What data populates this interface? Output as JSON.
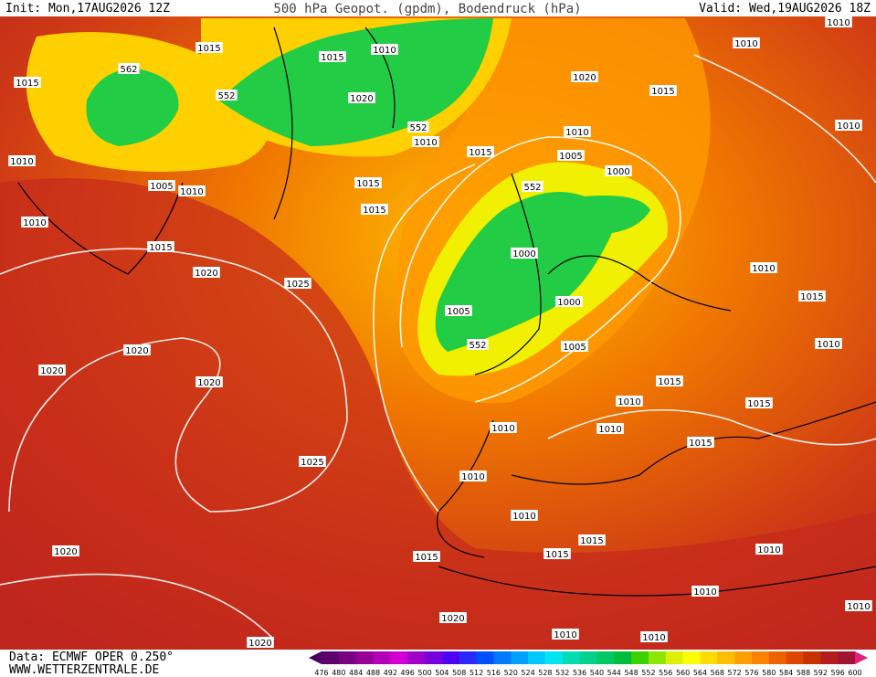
{
  "header": {
    "init": "Init: Mon,17AUG2026 12Z",
    "title": "500 hPa Geopot. (gpdm), Bodendruck (hPa)",
    "valid": "Valid: Wed,19AUG2026 18Z"
  },
  "footer": {
    "data": "Data: ECMWF OPER 0.250°",
    "url": "WWW.WETTERZENTRALE.DE"
  },
  "isobar_labels": [
    "1015",
    "1010",
    "1015",
    "1010",
    "1010",
    "1015",
    "562",
    "552",
    "1020",
    "1020",
    "1015",
    "552",
    "1010",
    "1010",
    "1010",
    "1015",
    "1005",
    "1000",
    "1010",
    "1005",
    "1010",
    "1015",
    "552",
    "1015",
    "1010",
    "1015",
    "1000",
    "1020",
    "1025",
    "1010",
    "1015",
    "1000",
    "1005",
    "552",
    "1005",
    "1010",
    "1020",
    "1020",
    "1020",
    "1015",
    "1010",
    "1015",
    "1010",
    "1010",
    "1015",
    "1025",
    "1010",
    "1010",
    "1015",
    "1015",
    "1015",
    "1020",
    "1010",
    "1010",
    "1020",
    "1010",
    "1010",
    "1020",
    "1010"
  ],
  "colorbar": {
    "labels": [
      476,
      480,
      484,
      488,
      492,
      496,
      500,
      504,
      508,
      512,
      516,
      520,
      524,
      528,
      532,
      536,
      540,
      544,
      548,
      552,
      556,
      560,
      564,
      568,
      572,
      576,
      580,
      584,
      588,
      592,
      596,
      600
    ],
    "colors": [
      "#4b0060",
      "#5c006e",
      "#7a0082",
      "#960096",
      "#b400b4",
      "#d200d2",
      "#a000c8",
      "#7800dc",
      "#5000f0",
      "#2828ff",
      "#0050ff",
      "#0078ff",
      "#00a0ff",
      "#00c8ff",
      "#00e6f0",
      "#00dcb4",
      "#00d28c",
      "#00c864",
      "#00be3c",
      "#3cd200",
      "#8ce600",
      "#dcf000",
      "#ffff00",
      "#ffdc00",
      "#ffbe00",
      "#ffa000",
      "#ff8200",
      "#f06400",
      "#e04600",
      "#c83200",
      "#b41e1e",
      "#a01432",
      "#e0207a"
    ]
  }
}
